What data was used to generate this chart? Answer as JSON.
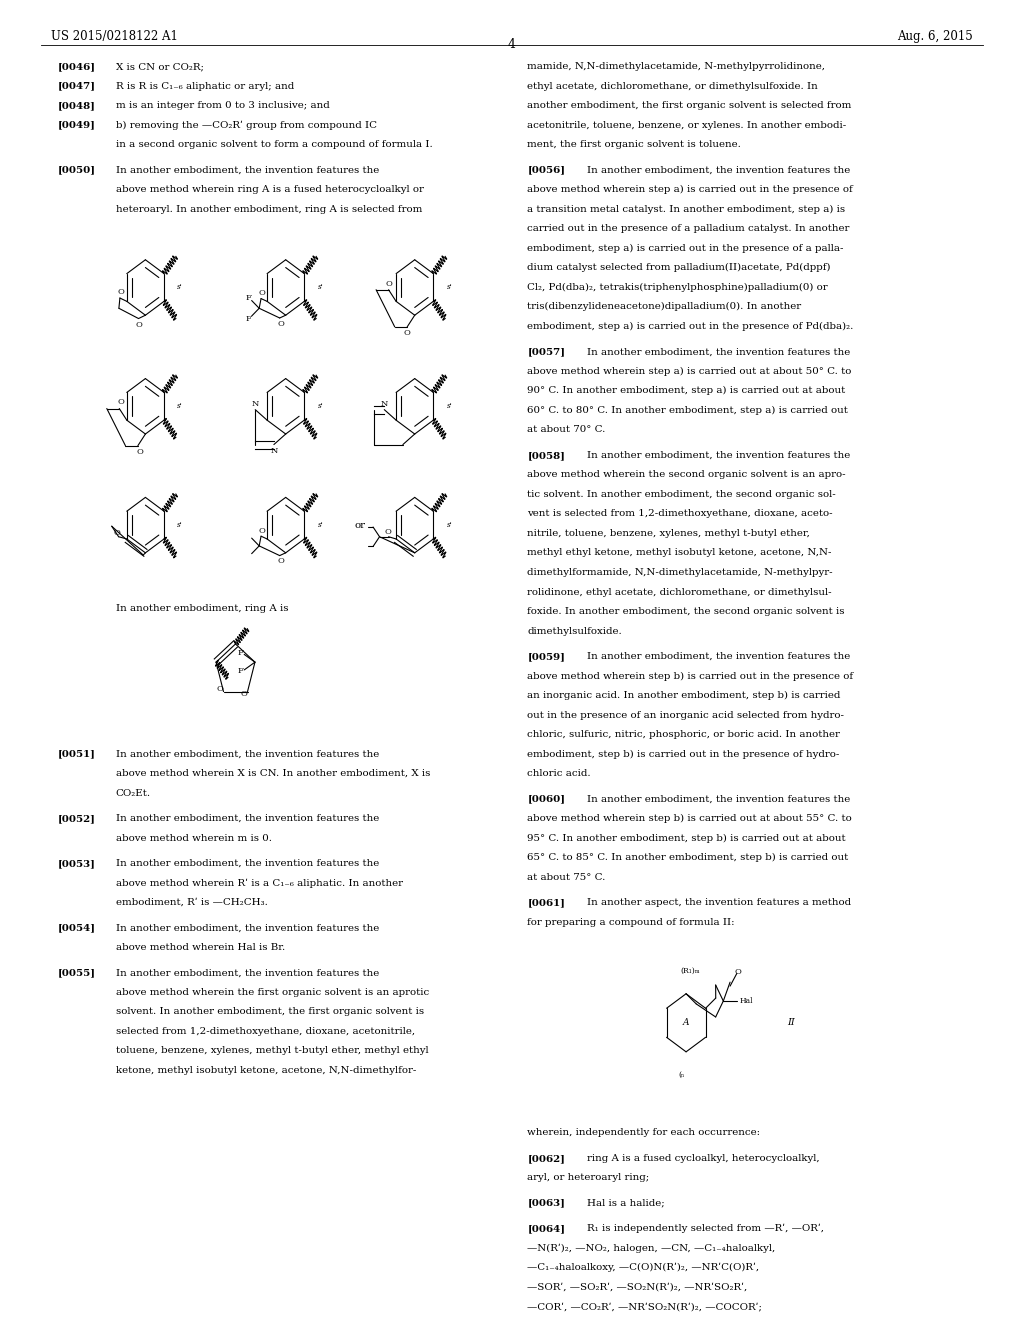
{
  "page_width": 10.24,
  "page_height": 13.2,
  "dpi": 100,
  "bg": "#ffffff",
  "header_left": "US 2015/0218122 A1",
  "header_right": "Aug. 6, 2015",
  "page_num": "4"
}
